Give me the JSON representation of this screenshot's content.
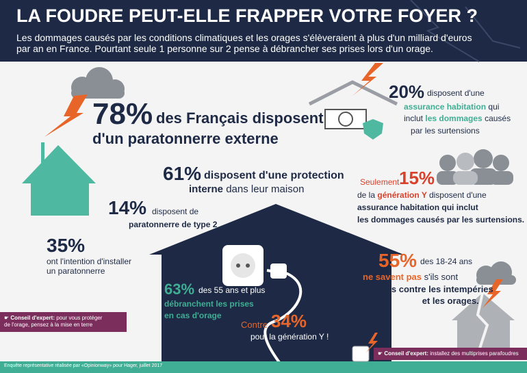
{
  "header": {
    "title": "LA FOUDRE PEUT-ELLE FRAPPER VOTRE FOYER ?",
    "subtitle": [
      "Les dommages causés par les conditions climatiques et les orages s'élèveraient à plus d'un milliard d'euros",
      "par an en France. Pourtant seule 1 personne sur 2 pense à débrancher ses prises lors d'un orage."
    ]
  },
  "stats": [
    {
      "figure": "78%",
      "lines": [
        "des Français disposent",
        "d'un paratonnerre externe"
      ]
    },
    {
      "figure": "61%",
      "lines": [
        "disposent d'une protection",
        "interne",
        "dans leur maison"
      ]
    },
    {
      "figure": "14%",
      "lines": [
        "disposent de",
        "paratonnerre de type 2"
      ]
    },
    {
      "figure": "35%",
      "lines": [
        "ont l'intention d'installer",
        "un paratonnerre"
      ]
    },
    {
      "figure": "20%",
      "lines": [
        "disposent d'une",
        "assurance habitation",
        "qui",
        "inclut",
        "les dommages",
        "causés",
        "par les surtensions"
      ]
    },
    {
      "figure": "15%",
      "lines": [
        "Seulement",
        "de la",
        "génération Y",
        "disposent d'une",
        "assurance habitation qui inclut",
        "les dommages causés par les surtensions."
      ]
    },
    {
      "figure": "63%",
      "lines": [
        "des 55 ans et plus",
        "débranchent les prises",
        "en cas d'orage"
      ]
    },
    {
      "figure": "34%",
      "lines": [
        "Contre",
        "pour la génération Y !"
      ]
    },
    {
      "figure": "55%",
      "lines": [
        "des 18-24 ans",
        "ne savent pas",
        "s'ils sont",
        "assurés contre les intempéries",
        "et les orages."
      ]
    }
  ],
  "tips": [
    {
      "label": "Conseil d'expert:",
      "text": [
        "pour vous protéger",
        "de l'orage, pensez à la mise en terre"
      ]
    },
    {
      "label": "Conseil d'expert:",
      "text": [
        "installez des multiprises parafoudres"
      ]
    }
  ],
  "footer": "Enquête représentative réalisée par «Opinionway» pour Hager, juillet 2017"
}
